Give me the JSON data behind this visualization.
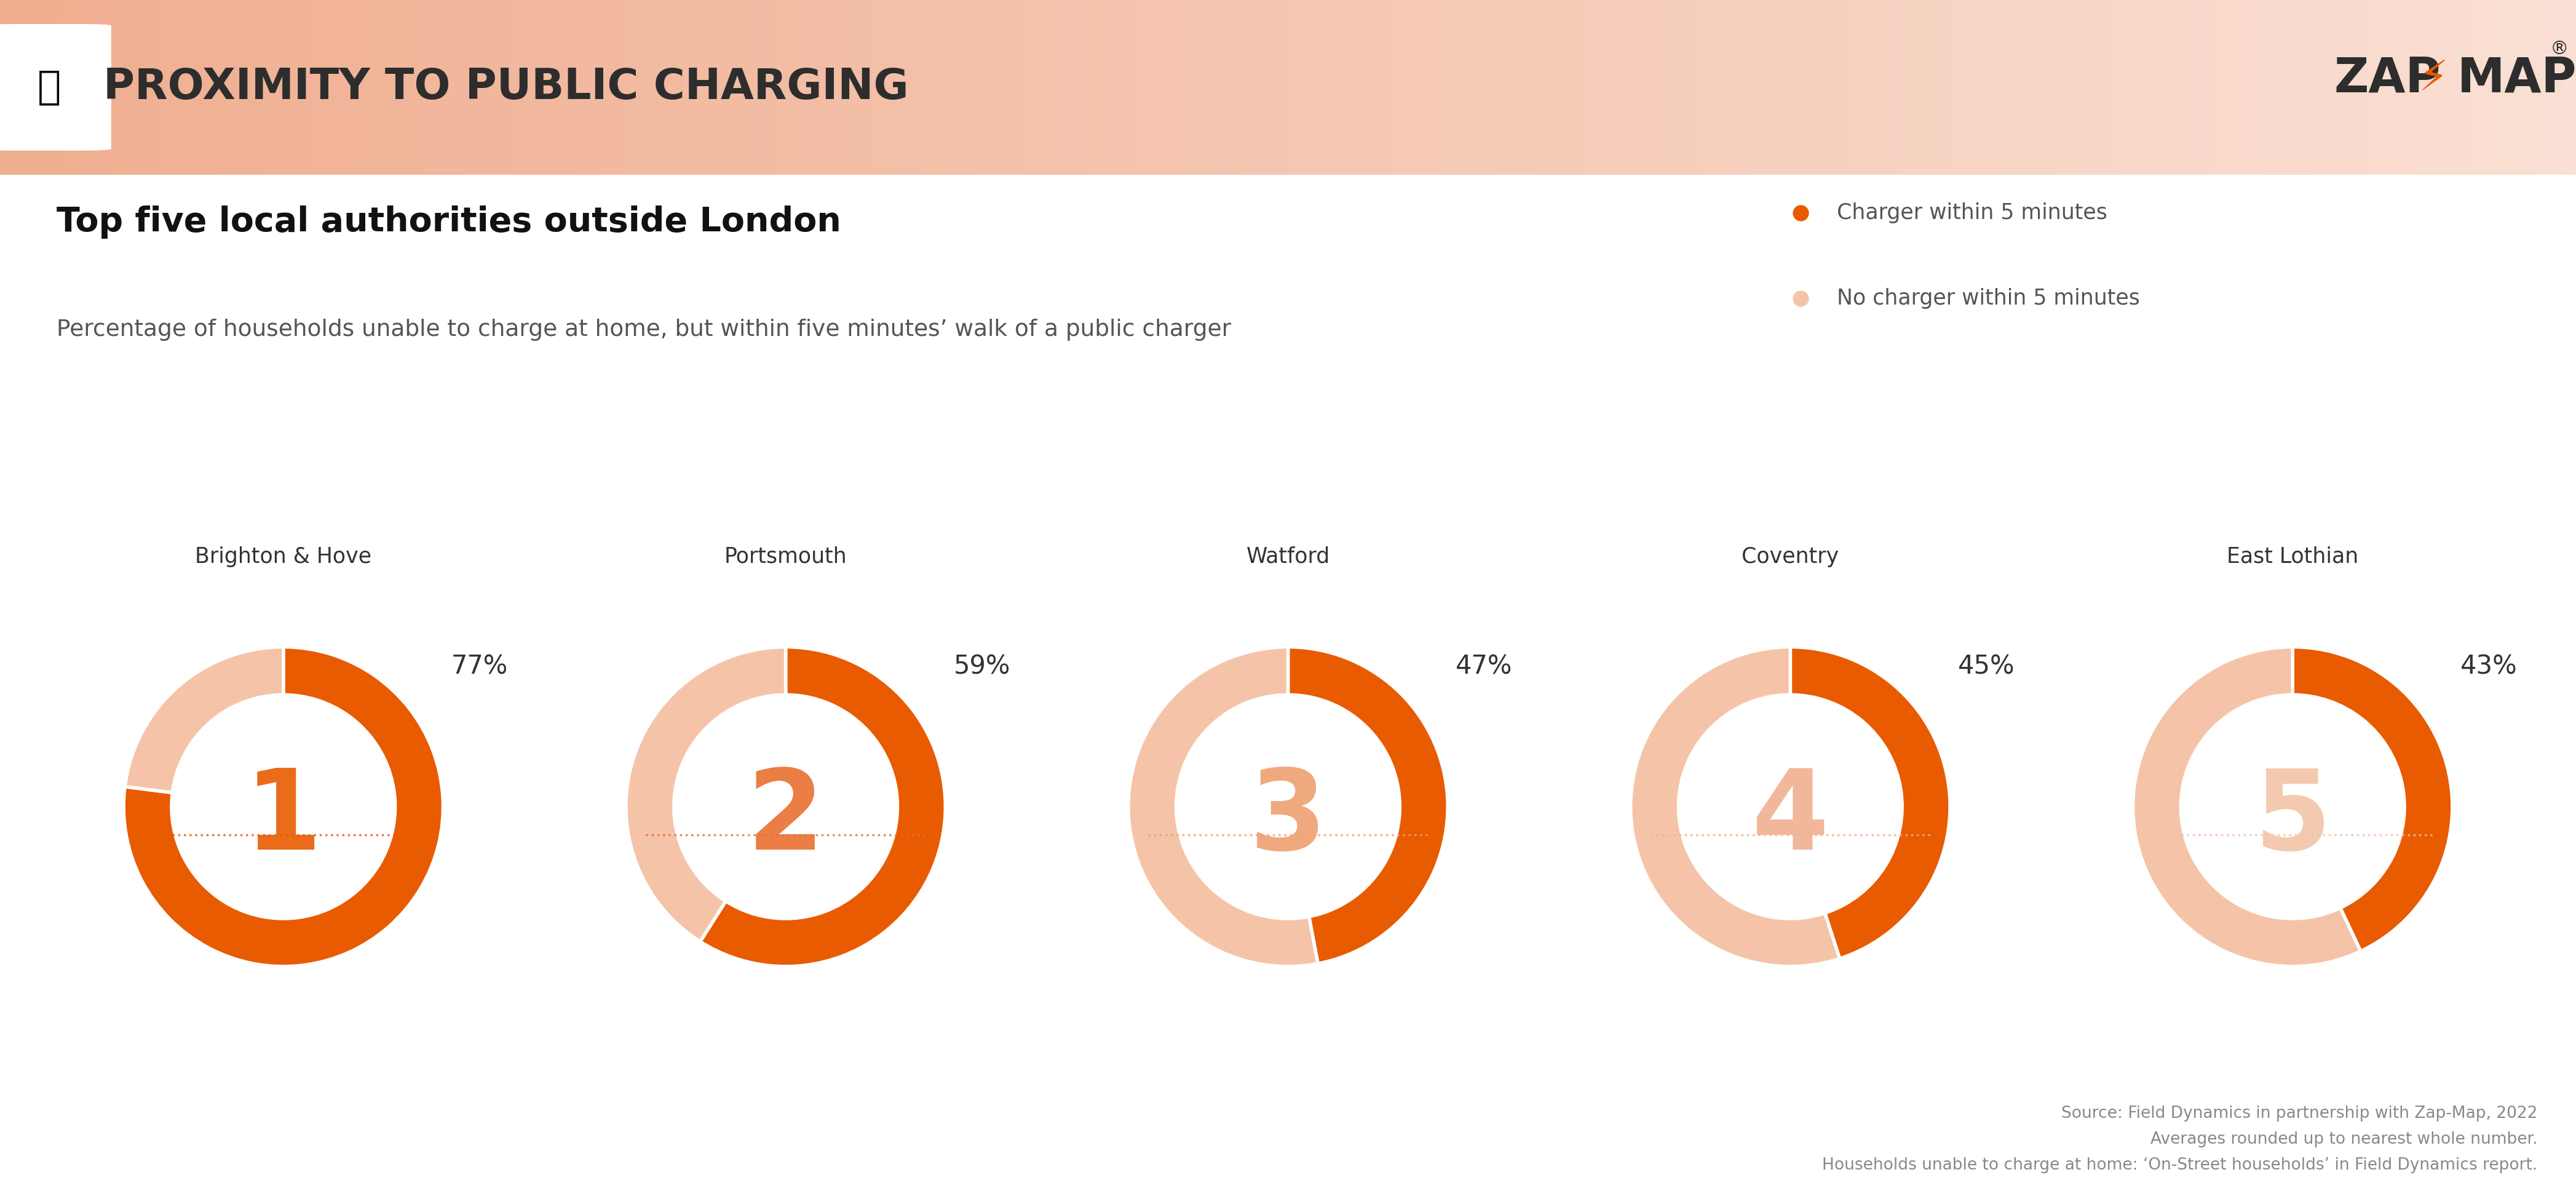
{
  "title": "Top five local authorities outside London",
  "subtitle": "Percentage of households unable to charge at home, but within five minutes’ walk of a public charger",
  "header_title": "PROXIMITY TO PUBLIC CHARGING",
  "authorities": [
    "Brighton & Hove",
    "Portsmouth",
    "Watford",
    "Coventry",
    "East Lothian"
  ],
  "percentages": [
    77,
    59,
    47,
    45,
    43
  ],
  "ranks": [
    "1",
    "2",
    "3",
    "4",
    "5"
  ],
  "legend_within": "Charger within 5 minutes",
  "legend_without": "No charger within 5 minutes",
  "color_within": "#E85B00",
  "color_without": "#F5C4A8",
  "header_bg_left": "#F0AE90",
  "header_bg_right": "#FAE0D4",
  "background_color": "#FFFFFF",
  "header_text_color": "#2D2D2D",
  "source_text": "Source: Field Dynamics in partnership with Zap-Map, 2022\nAverages rounded up to nearest whole number.\nHouseholds unable to charge at home: ‘On-Street households’ in Field Dynamics report.",
  "donut_width": 0.3,
  "rank_colors": [
    "#E85B00",
    "#E87030",
    "#EFA070",
    "#F0B090",
    "#F2C4A8"
  ],
  "pct_label_color": "#333333",
  "authority_label_color": "#333333"
}
